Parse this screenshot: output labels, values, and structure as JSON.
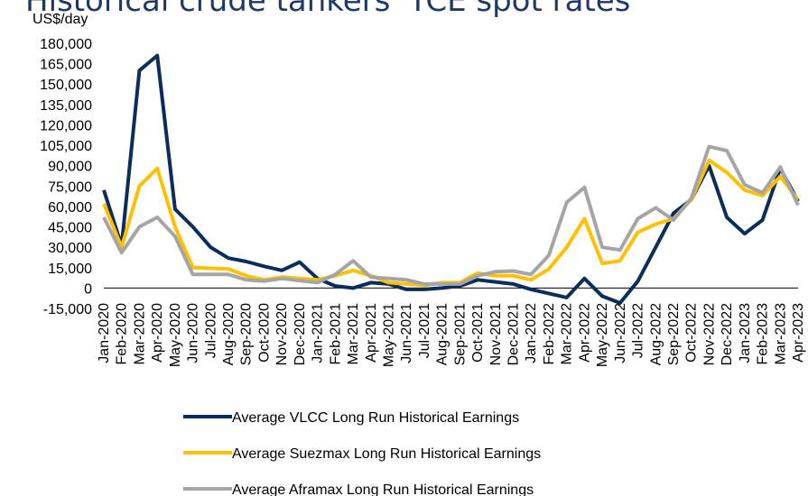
{
  "chart_data": {
    "type": "line",
    "title": "Historical crude tankers' TCE spot rates",
    "y_label": "US$/day",
    "categories": [
      "Jan-2020",
      "Feb-2020",
      "Mar-2020",
      "Apr-2020",
      "May-2020",
      "Jun-2020",
      "Jul-2020",
      "Aug-2020",
      "Sep-2020",
      "Oct-2020",
      "Nov-2020",
      "Dec-2020",
      "Jan-2021",
      "Feb-2021",
      "Mar-2021",
      "Apr-2021",
      "May-2021",
      "Jun-2021",
      "Jul-2021",
      "Aug-2021",
      "Sep-2021",
      "Oct-2021",
      "Nov-2021",
      "Dec-2021",
      "Jan-2022",
      "Feb-2022",
      "Mar-2022",
      "Apr-2022",
      "May-2022",
      "Jun-2022",
      "Jul-2022",
      "Aug-2022",
      "Sep-2022",
      "Oct-2022",
      "Nov-2022",
      "Dec-2022",
      "Jan-2023",
      "Feb-2023",
      "Mar-2023",
      "Apr-2023"
    ],
    "series": [
      {
        "name": "Average VLCC Long Run Historical Earnings",
        "color": "#0b2d5b",
        "values": [
          72000,
          31000,
          160000,
          171000,
          58000,
          45000,
          30000,
          22000,
          19500,
          16000,
          13000,
          19000,
          7000,
          1500,
          0,
          4000,
          3000,
          -1000,
          -1000,
          0,
          1500,
          6000,
          4500,
          3000,
          -1000,
          -4000,
          -7000,
          7000,
          -6000,
          -11000,
          5000,
          30000,
          55000,
          65000,
          90000,
          52000,
          40000,
          50000,
          88000,
          64000
        ]
      },
      {
        "name": "Average Suezmax Long Run Historical Earnings",
        "color": "#ffc000",
        "values": [
          62000,
          30000,
          75000,
          88000,
          45000,
          15000,
          14500,
          14000,
          9000,
          6000,
          8000,
          7000,
          6000,
          9000,
          13000,
          9000,
          4000,
          3000,
          2000,
          4000,
          4000,
          11000,
          9000,
          9000,
          6000,
          14000,
          30000,
          51000,
          18000,
          20000,
          41000,
          47000,
          51000,
          65000,
          94000,
          85000,
          72000,
          68000,
          82000,
          65000
        ]
      },
      {
        "name": "Average Aframax Long Run Historical Earnings",
        "color": "#a5a5a5",
        "values": [
          52000,
          26000,
          45000,
          52000,
          38000,
          10000,
          10000,
          10000,
          6000,
          5000,
          7000,
          5500,
          4000,
          10000,
          20000,
          8000,
          7000,
          6000,
          3000,
          3000,
          3000,
          9000,
          12000,
          12500,
          10000,
          24000,
          63000,
          74000,
          30000,
          28000,
          51000,
          59000,
          50000,
          66000,
          104000,
          101000,
          76000,
          70000,
          89000,
          61000
        ]
      }
    ],
    "ylim": [
      -15000,
      180000
    ],
    "yticks": [
      {
        "value": -15000,
        "label": "-15,000"
      },
      0,
      {
        "value": 15000,
        "label": "15,000"
      },
      {
        "value": 30000,
        "label": "30,000"
      },
      {
        "value": 45000,
        "label": "45,000"
      },
      {
        "value": 60000,
        "label": "60,000"
      },
      {
        "value": 75000,
        "label": "75,000"
      },
      {
        "value": 90000,
        "label": "90,000"
      },
      {
        "value": 105000,
        "label": "105,000"
      },
      {
        "value": 120000,
        "label": "120,000"
      },
      {
        "value": 135000,
        "label": "135,000"
      },
      {
        "value": 150000,
        "label": "150,000"
      },
      {
        "value": 165000,
        "label": "165,000"
      },
      {
        "value": 180000,
        "label": "180,000"
      }
    ],
    "grid": false,
    "legend": "bottom"
  }
}
